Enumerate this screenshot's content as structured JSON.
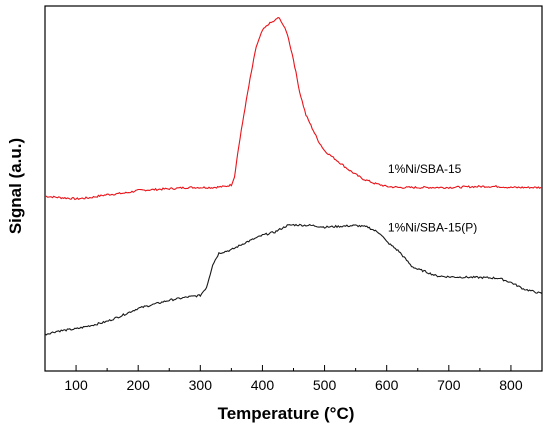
{
  "chart_data": {
    "type": "line",
    "xlabel": "Temperature (°C)",
    "ylabel": "Signal (a.u.)",
    "xlim": [
      50,
      850
    ],
    "xticks": [
      100,
      200,
      300,
      400,
      500,
      600,
      700,
      800
    ],
    "yticks_visible": false,
    "grid": false,
    "legend": "none",
    "series": [
      {
        "name": "1%Ni/SBA-15",
        "color": "#e8141a",
        "label_position": [
          0.69,
          0.43
        ],
        "x": [
          50,
          80,
          100,
          120,
          150,
          180,
          200,
          220,
          250,
          280,
          300,
          320,
          340,
          350,
          355,
          360,
          370,
          380,
          390,
          400,
          410,
          420,
          425,
          430,
          440,
          450,
          460,
          470,
          480,
          490,
          500,
          520,
          540,
          560,
          580,
          600,
          620,
          650,
          700,
          750,
          780,
          800,
          850
        ],
        "values": [
          0.47,
          0.465,
          0.462,
          0.465,
          0.475,
          0.48,
          0.488,
          0.49,
          0.493,
          0.497,
          0.497,
          0.497,
          0.5,
          0.505,
          0.53,
          0.6,
          0.72,
          0.83,
          0.93,
          0.98,
          1.0,
          1.01,
          1.02,
          1.01,
          0.97,
          0.89,
          0.79,
          0.72,
          0.68,
          0.64,
          0.61,
          0.58,
          0.55,
          0.525,
          0.51,
          0.5,
          0.497,
          0.497,
          0.497,
          0.5,
          0.5,
          0.497,
          0.497
        ]
      },
      {
        "name": "1%Ni/SBA-15(P)",
        "color": "#1a1a1a",
        "label_position": [
          0.69,
          0.59
        ],
        "x": [
          50,
          70,
          100,
          130,
          150,
          170,
          200,
          230,
          250,
          280,
          300,
          310,
          320,
          330,
          350,
          370,
          400,
          420,
          440,
          450,
          480,
          500,
          530,
          550,
          570,
          590,
          600,
          620,
          640,
          650,
          660,
          680,
          700,
          750,
          780,
          800,
          820,
          850
        ],
        "values": [
          0.045,
          0.055,
          0.062,
          0.075,
          0.085,
          0.1,
          0.125,
          0.14,
          0.15,
          0.16,
          0.165,
          0.19,
          0.26,
          0.295,
          0.305,
          0.325,
          0.35,
          0.36,
          0.38,
          0.382,
          0.38,
          0.375,
          0.378,
          0.38,
          0.375,
          0.355,
          0.33,
          0.3,
          0.255,
          0.245,
          0.24,
          0.225,
          0.222,
          0.22,
          0.218,
          0.205,
          0.185,
          0.17
        ]
      }
    ]
  }
}
